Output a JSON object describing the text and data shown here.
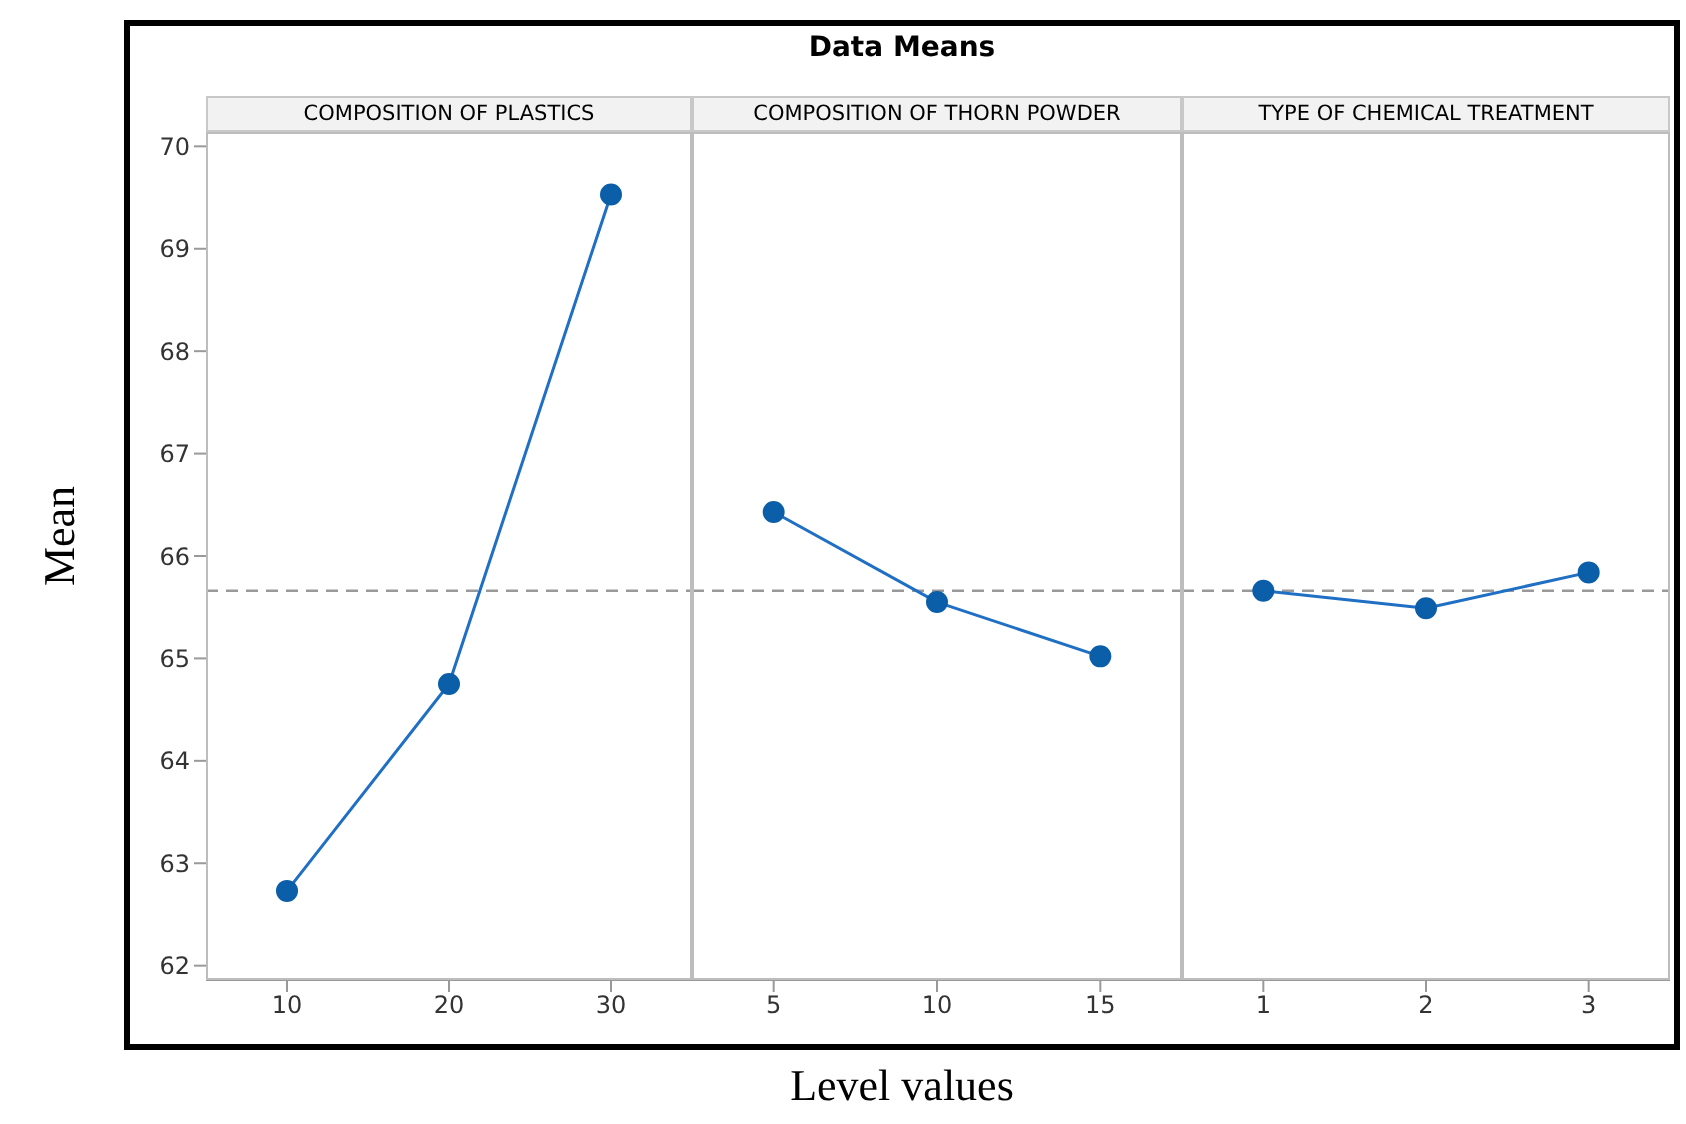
{
  "chart_data": [
    {
      "type": "line",
      "ylabel": "Mean",
      "subtitle": "COMPOSITION OF PLASTICS",
      "categories": [
        "10",
        "20",
        "30"
      ],
      "series": [
        {
          "color": "#1f6fc4",
          "values": [
            62.73,
            64.75,
            69.53
          ]
        }
      ],
      "ylim": [
        61.86,
        70.14
      ],
      "yticks": [
        62,
        63,
        64,
        65,
        66,
        67,
        68,
        69,
        70
      ],
      "ref_lines": [
        {
          "axis": "y",
          "value": 65.66,
          "color": "#999999",
          "line_style": "dashed"
        }
      ],
      "marker": "circle"
    },
    {
      "type": "line",
      "title": "Data Means",
      "xlabel": "Level values",
      "subtitle": "COMPOSITION OF THORN POWDER",
      "categories": [
        "5",
        "10",
        "15"
      ],
      "series": [
        {
          "color": "#1f6fc4",
          "values": [
            66.43,
            65.55,
            65.02
          ]
        }
      ],
      "ylim": [
        61.86,
        70.14
      ],
      "tick_labels": "x",
      "ref_lines": [
        {
          "axis": "y",
          "value": 65.66,
          "color": "#999999",
          "line_style": "dashed"
        }
      ],
      "marker": "circle"
    },
    {
      "type": "line",
      "subtitle": "TYPE OF CHEMICAL TREATMENT",
      "categories": [
        "1",
        "2",
        "3"
      ],
      "series": [
        {
          "color": "#1f6fc4",
          "values": [
            65.66,
            65.49,
            65.84
          ]
        }
      ],
      "ylim": [
        61.86,
        70.14
      ],
      "tick_labels": "x",
      "ref_lines": [
        {
          "axis": "y",
          "value": 65.66,
          "color": "#999999",
          "line_style": "dashed"
        }
      ],
      "marker": "circle"
    }
  ]
}
